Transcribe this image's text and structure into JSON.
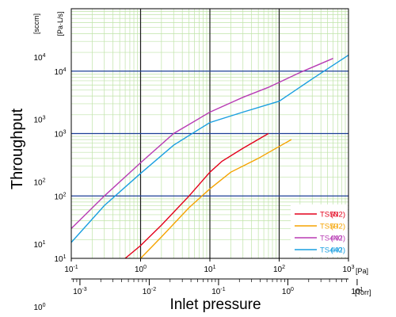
{
  "chart_data": {
    "type": "line",
    "title": "",
    "xlabel": "Inlet pressure",
    "ylabel": "Throughput",
    "x_scale": "log",
    "y_scale": "log",
    "x_unit_primary": "[Pa]",
    "x_unit_secondary": "[Torr]",
    "y_unit_primary": "[Pa·L/s]",
    "y_unit_secondary": "[sccm]",
    "xlim_pa": [
      0.1,
      1000
    ],
    "ylim_pa_ls": [
      10,
      100000
    ],
    "x_ticks_pa": [
      "10-1",
      "100",
      "101",
      "102",
      "103"
    ],
    "x_ticks_torr": [
      "10-3",
      "10-2",
      "10-1",
      "100",
      "101"
    ],
    "y_ticks_pa_ls": [
      "101",
      "102",
      "103",
      "104"
    ],
    "y_ticks_sccm": [
      "100",
      "101",
      "102",
      "103",
      "104"
    ],
    "grid": true,
    "legend_position": "bottom-right",
    "legend_entries": [
      {
        "label": "TS50",
        "gas": "(N2)",
        "color": "#e3001b"
      },
      {
        "label": "TS50",
        "gas": "(H2)",
        "color": "#f5a300"
      },
      {
        "label": "TS440",
        "gas": "(N2)",
        "color": "#b83cb4"
      },
      {
        "label": "TS440",
        "gas": "(H2)",
        "color": "#1a9fe0"
      }
    ],
    "colors": {
      "major_grid": "#1b1b1b",
      "hline": "#1d3f96",
      "minor_grid": "#bfe3a8"
    },
    "series": [
      {
        "name": "TS50 (N2)",
        "color": "#e3001b",
        "x": [
          0.6,
          1,
          2,
          5,
          10,
          15,
          30,
          70
        ],
        "y": [
          10,
          16,
          34,
          100,
          240,
          360,
          580,
          1000
        ]
      },
      {
        "name": "TS50 (H2)",
        "color": "#f5a300",
        "x": [
          1,
          2,
          5,
          10,
          20,
          50,
          100,
          150
        ],
        "y": [
          10,
          22,
          65,
          130,
          240,
          400,
          620,
          800
        ]
      },
      {
        "name": "TS440 (N2)",
        "color": "#b83cb4",
        "x": [
          0.1,
          0.3,
          1,
          3,
          10,
          30,
          70,
          200,
          600
        ],
        "y": [
          30,
          100,
          340,
          1000,
          2200,
          3800,
          5500,
          9500,
          16000
        ]
      },
      {
        "name": "TS440 (H2)",
        "color": "#1a9fe0",
        "x": [
          0.1,
          0.3,
          1,
          3,
          10,
          30,
          100,
          300,
          1000
        ],
        "y": [
          18,
          70,
          230,
          650,
          1500,
          2200,
          3300,
          7500,
          18000
        ]
      }
    ]
  }
}
